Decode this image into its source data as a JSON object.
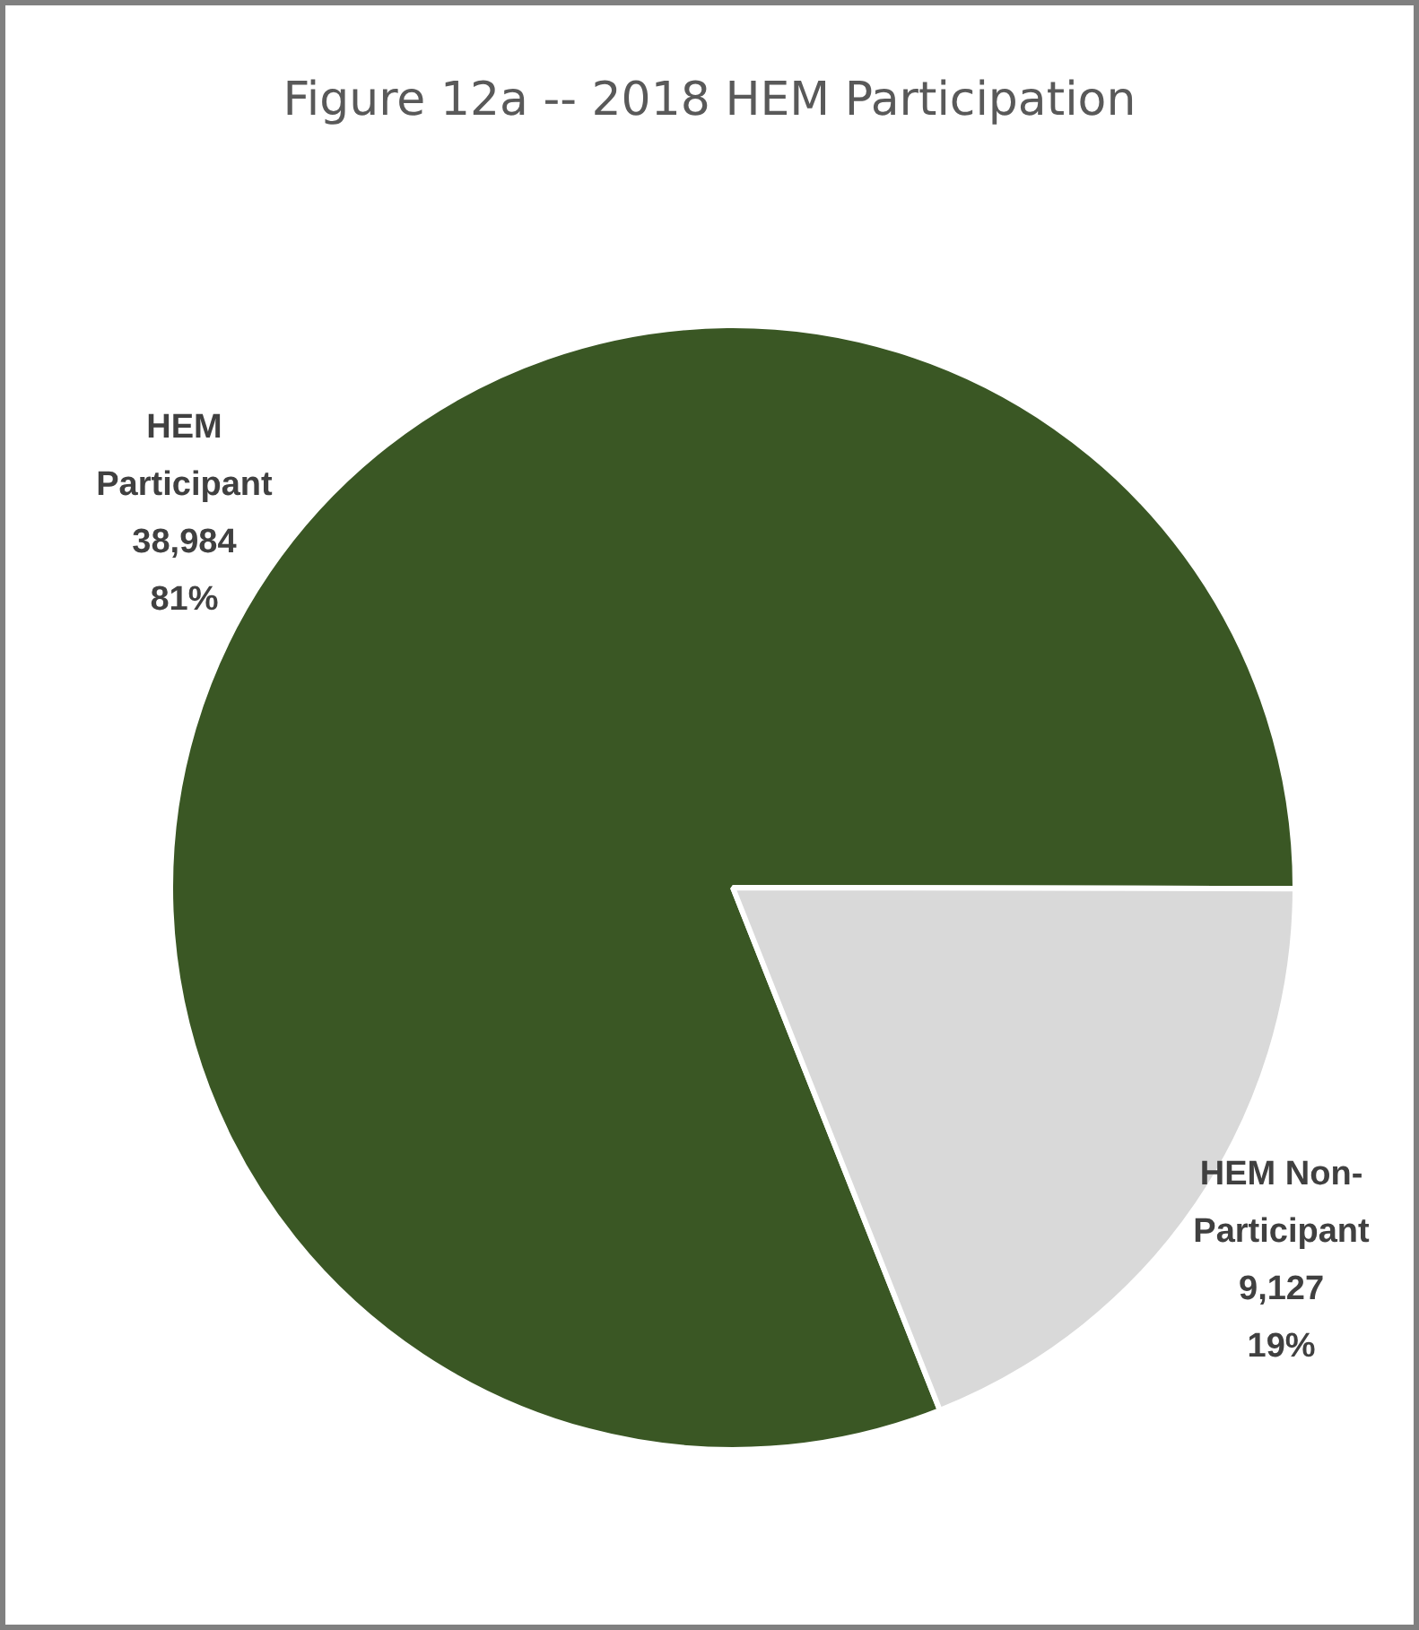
{
  "chart_data": {
    "type": "pie",
    "title": "Figure 12a -- 2018 HEM Participation",
    "categories": [
      "HEM Participant",
      "HEM Non-Participant"
    ],
    "values": [
      38984,
      9127
    ],
    "colors": [
      "#3a5724",
      "#d9d9d9"
    ],
    "value_labels": [
      "38,984\n81%",
      "9,127\n19%"
    ],
    "legend": false
  }
}
